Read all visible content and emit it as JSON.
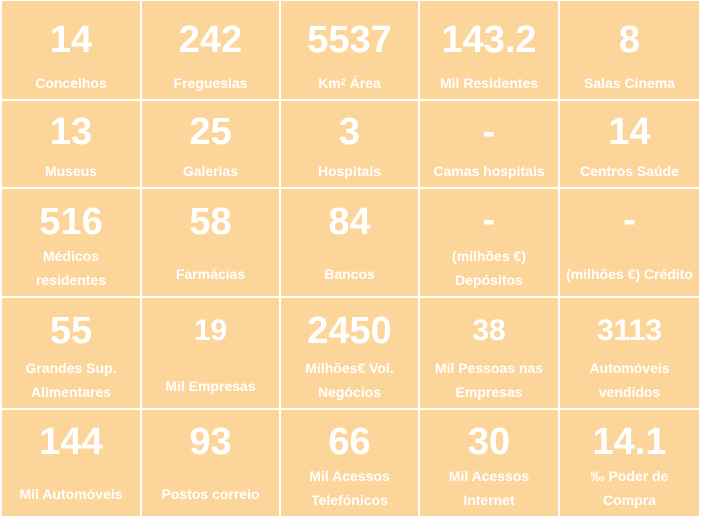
{
  "cells": [
    {
      "value": "14",
      "label": "Concelhos"
    },
    {
      "value": "242",
      "label": "Freguesias"
    },
    {
      "value": "5537",
      "label_pre": "Km",
      "label_sup": "2",
      "label_post": " Área"
    },
    {
      "value": "143.2",
      "label": "Mil Residentes"
    },
    {
      "value": "8",
      "label": "Salas Cinema"
    },
    {
      "value": "13",
      "label": "Museus"
    },
    {
      "value": "25",
      "label": "Galerias"
    },
    {
      "value": "3",
      "label": "Hospitais"
    },
    {
      "value": "-",
      "label": "Camas hospitais"
    },
    {
      "value": "14",
      "label": "Centros Saúde"
    },
    {
      "value": "516",
      "label": "Médicos residentes",
      "label_l1": "Médicos",
      "label_l2": "residentes"
    },
    {
      "value": "58",
      "label": "Farmácias"
    },
    {
      "value": "84",
      "label": "Bancos"
    },
    {
      "value": "-",
      "label_l1": "(milhões €)",
      "label_l2": "Depósitos"
    },
    {
      "value": "-",
      "label": "(milhões €) Crédito"
    },
    {
      "value": "55",
      "label_l1": "Grandes Sup.",
      "label_l2": "Alimentares"
    },
    {
      "value": "19",
      "label": "Mil Empresas"
    },
    {
      "value": "2450",
      "label_l1": "Milhões€ Vol.",
      "label_l2": "Negócios"
    },
    {
      "value": "38",
      "label_l1": "Mil Pessoas nas",
      "label_l2": "Empresas"
    },
    {
      "value": "3113",
      "label_l1": "Automóveis",
      "label_l2": "vendidos"
    },
    {
      "value": "144",
      "label": "Mil Automóveis"
    },
    {
      "value": "93",
      "label": "Postos correio"
    },
    {
      "value": "66",
      "label_l1": "Mil Acessos",
      "label_l2": "Telefónicos"
    },
    {
      "value": "30",
      "label_l1": "Mil Acessos",
      "label_l2": "Internet"
    },
    {
      "value": "14.1",
      "label_l1": "‰ Poder de",
      "label_l2": "Compra"
    }
  ]
}
